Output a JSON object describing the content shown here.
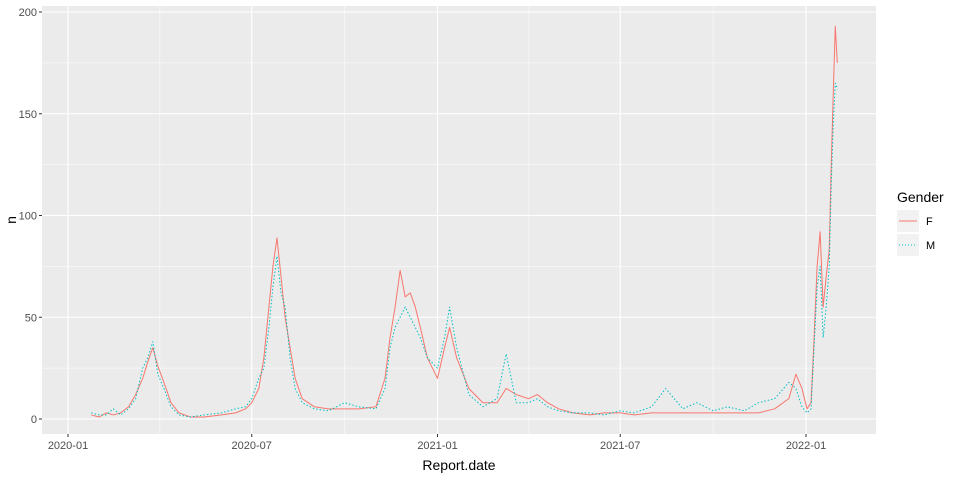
{
  "chart_data": {
    "type": "line",
    "title": "",
    "xlabel": "Report.date",
    "ylabel": "n",
    "xlim": [
      "2020-01-01",
      "2022-03-01"
    ],
    "ylim": [
      0,
      200
    ],
    "x_ticks": [
      {
        "date": "2020-01-01",
        "label": "2020-01"
      },
      {
        "date": "2020-07-01",
        "label": "2020-07"
      },
      {
        "date": "2021-01-01",
        "label": "2021-01"
      },
      {
        "date": "2021-07-01",
        "label": "2021-07"
      },
      {
        "date": "2022-01-01",
        "label": "2022-01"
      }
    ],
    "y_ticks": [
      0,
      50,
      100,
      150,
      200
    ],
    "grid": true,
    "legend": {
      "title": "Gender",
      "position": "right"
    },
    "series": [
      {
        "name": "F",
        "color": "#F8766D",
        "line_style": "solid",
        "points": [
          [
            "2020-01-24",
            2
          ],
          [
            "2020-02-01",
            1
          ],
          [
            "2020-02-08",
            3
          ],
          [
            "2020-02-15",
            2
          ],
          [
            "2020-02-22",
            3
          ],
          [
            "2020-03-01",
            6
          ],
          [
            "2020-03-08",
            12
          ],
          [
            "2020-03-15",
            20
          ],
          [
            "2020-03-20",
            28
          ],
          [
            "2020-03-25",
            35
          ],
          [
            "2020-03-30",
            26
          ],
          [
            "2020-04-05",
            18
          ],
          [
            "2020-04-12",
            8
          ],
          [
            "2020-04-20",
            3
          ],
          [
            "2020-05-01",
            1
          ],
          [
            "2020-05-15",
            1
          ],
          [
            "2020-06-01",
            2
          ],
          [
            "2020-06-15",
            3
          ],
          [
            "2020-06-25",
            5
          ],
          [
            "2020-07-01",
            8
          ],
          [
            "2020-07-08",
            15
          ],
          [
            "2020-07-13",
            30
          ],
          [
            "2020-07-18",
            55
          ],
          [
            "2020-07-22",
            75
          ],
          [
            "2020-07-26",
            89
          ],
          [
            "2020-07-30",
            70
          ],
          [
            "2020-08-03",
            50
          ],
          [
            "2020-08-08",
            35
          ],
          [
            "2020-08-13",
            20
          ],
          [
            "2020-08-20",
            10
          ],
          [
            "2020-09-01",
            6
          ],
          [
            "2020-09-15",
            5
          ],
          [
            "2020-10-01",
            5
          ],
          [
            "2020-10-15",
            5
          ],
          [
            "2020-11-01",
            6
          ],
          [
            "2020-11-10",
            20
          ],
          [
            "2020-11-15",
            40
          ],
          [
            "2020-11-20",
            55
          ],
          [
            "2020-11-25",
            73
          ],
          [
            "2020-11-30",
            60
          ],
          [
            "2020-12-05",
            62
          ],
          [
            "2020-12-10",
            55
          ],
          [
            "2020-12-15",
            45
          ],
          [
            "2020-12-22",
            30
          ],
          [
            "2021-01-01",
            20
          ],
          [
            "2021-01-08",
            35
          ],
          [
            "2021-01-13",
            45
          ],
          [
            "2021-01-20",
            30
          ],
          [
            "2021-02-01",
            15
          ],
          [
            "2021-02-15",
            8
          ],
          [
            "2021-03-01",
            8
          ],
          [
            "2021-03-10",
            15
          ],
          [
            "2021-03-20",
            12
          ],
          [
            "2021-04-01",
            10
          ],
          [
            "2021-04-10",
            12
          ],
          [
            "2021-04-20",
            8
          ],
          [
            "2021-05-01",
            5
          ],
          [
            "2021-05-15",
            3
          ],
          [
            "2021-06-01",
            2
          ],
          [
            "2021-06-15",
            3
          ],
          [
            "2021-07-01",
            3
          ],
          [
            "2021-07-15",
            2
          ],
          [
            "2021-08-01",
            3
          ],
          [
            "2021-08-15",
            3
          ],
          [
            "2021-09-01",
            3
          ],
          [
            "2021-09-15",
            3
          ],
          [
            "2021-10-01",
            3
          ],
          [
            "2021-10-15",
            3
          ],
          [
            "2021-11-01",
            3
          ],
          [
            "2021-11-15",
            3
          ],
          [
            "2021-12-01",
            5
          ],
          [
            "2021-12-15",
            10
          ],
          [
            "2021-12-22",
            22
          ],
          [
            "2021-12-28",
            15
          ],
          [
            "2022-01-02",
            5
          ],
          [
            "2022-01-06",
            8
          ],
          [
            "2022-01-09",
            40
          ],
          [
            "2022-01-12",
            75
          ],
          [
            "2022-01-15",
            92
          ],
          [
            "2022-01-18",
            55
          ],
          [
            "2022-01-21",
            70
          ],
          [
            "2022-01-24",
            83
          ],
          [
            "2022-01-26",
            125
          ],
          [
            "2022-01-28",
            160
          ],
          [
            "2022-01-30",
            193
          ],
          [
            "2022-02-01",
            175
          ]
        ]
      },
      {
        "name": "M",
        "color": "#00BFC4",
        "line_style": "dotted",
        "points": [
          [
            "2020-01-24",
            3
          ],
          [
            "2020-02-01",
            2
          ],
          [
            "2020-02-08",
            2
          ],
          [
            "2020-02-15",
            5
          ],
          [
            "2020-02-22",
            2
          ],
          [
            "2020-03-01",
            5
          ],
          [
            "2020-03-08",
            10
          ],
          [
            "2020-03-15",
            25
          ],
          [
            "2020-03-20",
            30
          ],
          [
            "2020-03-25",
            38
          ],
          [
            "2020-03-30",
            22
          ],
          [
            "2020-04-05",
            15
          ],
          [
            "2020-04-12",
            6
          ],
          [
            "2020-04-20",
            2
          ],
          [
            "2020-05-01",
            1
          ],
          [
            "2020-05-15",
            2
          ],
          [
            "2020-06-01",
            3
          ],
          [
            "2020-06-15",
            5
          ],
          [
            "2020-06-25",
            6
          ],
          [
            "2020-07-01",
            10
          ],
          [
            "2020-07-08",
            20
          ],
          [
            "2020-07-13",
            25
          ],
          [
            "2020-07-18",
            45
          ],
          [
            "2020-07-22",
            65
          ],
          [
            "2020-07-26",
            80
          ],
          [
            "2020-07-30",
            62
          ],
          [
            "2020-08-03",
            55
          ],
          [
            "2020-08-08",
            30
          ],
          [
            "2020-08-13",
            15
          ],
          [
            "2020-08-20",
            8
          ],
          [
            "2020-09-01",
            5
          ],
          [
            "2020-09-15",
            4
          ],
          [
            "2020-10-01",
            8
          ],
          [
            "2020-10-15",
            6
          ],
          [
            "2020-11-01",
            5
          ],
          [
            "2020-11-10",
            15
          ],
          [
            "2020-11-15",
            35
          ],
          [
            "2020-11-20",
            45
          ],
          [
            "2020-11-25",
            50
          ],
          [
            "2020-11-30",
            55
          ],
          [
            "2020-12-05",
            50
          ],
          [
            "2020-12-10",
            45
          ],
          [
            "2020-12-15",
            40
          ],
          [
            "2020-12-22",
            30
          ],
          [
            "2021-01-01",
            25
          ],
          [
            "2021-01-08",
            40
          ],
          [
            "2021-01-13",
            55
          ],
          [
            "2021-01-20",
            35
          ],
          [
            "2021-02-01",
            12
          ],
          [
            "2021-02-15",
            6
          ],
          [
            "2021-03-01",
            10
          ],
          [
            "2021-03-10",
            32
          ],
          [
            "2021-03-20",
            8
          ],
          [
            "2021-04-01",
            8
          ],
          [
            "2021-04-10",
            10
          ],
          [
            "2021-04-20",
            6
          ],
          [
            "2021-05-01",
            4
          ],
          [
            "2021-05-15",
            3
          ],
          [
            "2021-06-01",
            3
          ],
          [
            "2021-06-15",
            2
          ],
          [
            "2021-07-01",
            4
          ],
          [
            "2021-07-15",
            3
          ],
          [
            "2021-08-01",
            6
          ],
          [
            "2021-08-15",
            15
          ],
          [
            "2021-09-01",
            5
          ],
          [
            "2021-09-15",
            8
          ],
          [
            "2021-10-01",
            4
          ],
          [
            "2021-10-15",
            6
          ],
          [
            "2021-11-01",
            4
          ],
          [
            "2021-11-15",
            8
          ],
          [
            "2021-12-01",
            10
          ],
          [
            "2021-12-15",
            18
          ],
          [
            "2021-12-22",
            15
          ],
          [
            "2021-12-28",
            6
          ],
          [
            "2022-01-02",
            3
          ],
          [
            "2022-01-06",
            5
          ],
          [
            "2022-01-09",
            35
          ],
          [
            "2022-01-12",
            65
          ],
          [
            "2022-01-15",
            75
          ],
          [
            "2022-01-18",
            40
          ],
          [
            "2022-01-21",
            55
          ],
          [
            "2022-01-24",
            75
          ],
          [
            "2022-01-26",
            115
          ],
          [
            "2022-01-28",
            145
          ],
          [
            "2022-01-30",
            165
          ],
          [
            "2022-02-01",
            162
          ]
        ]
      }
    ]
  }
}
